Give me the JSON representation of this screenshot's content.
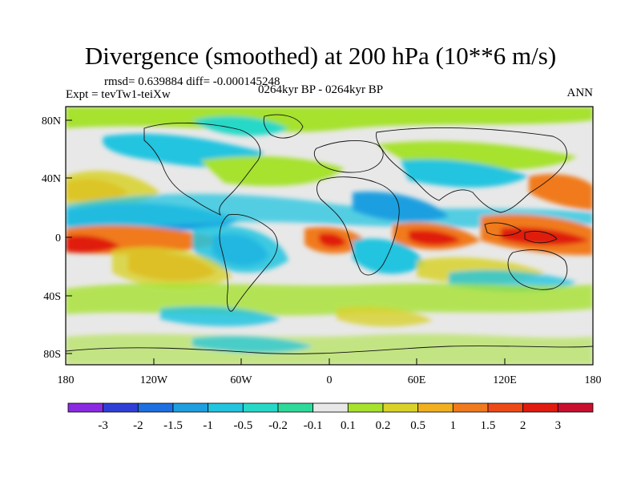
{
  "title": "Divergence (smoothed) at 200 hPa (10**6 m/s)",
  "stats": "rmsd= 0.639884 diff= -0.000145248",
  "experiment": "Expt = tevTw1-teiXw",
  "period": "0264kyr BP - 0264kyr BP",
  "season": "ANN",
  "axes": {
    "lat_ticks": [
      "80N",
      "40N",
      "0",
      "40S",
      "80S"
    ],
    "lon_ticks": [
      "180",
      "120W",
      "60W",
      "0",
      "60E",
      "120E",
      "180"
    ]
  },
  "colorbar": {
    "labels": [
      "-3",
      "-2",
      "-1.5",
      "-1",
      "-0.5",
      "-0.2",
      "-0.1",
      "0.1",
      "0.2",
      "0.5",
      "1",
      "1.5",
      "2",
      "3"
    ],
    "colors": [
      "#8a2be2",
      "#2f3fd6",
      "#1e6fe0",
      "#1f9fe0",
      "#22c4e0",
      "#27d8c8",
      "#2ed99a",
      "#e8e8e8",
      "#a6e22e",
      "#d8d22a",
      "#f0b020",
      "#f07a1e",
      "#ec4a18",
      "#e01c10",
      "#c8102e"
    ]
  }
}
